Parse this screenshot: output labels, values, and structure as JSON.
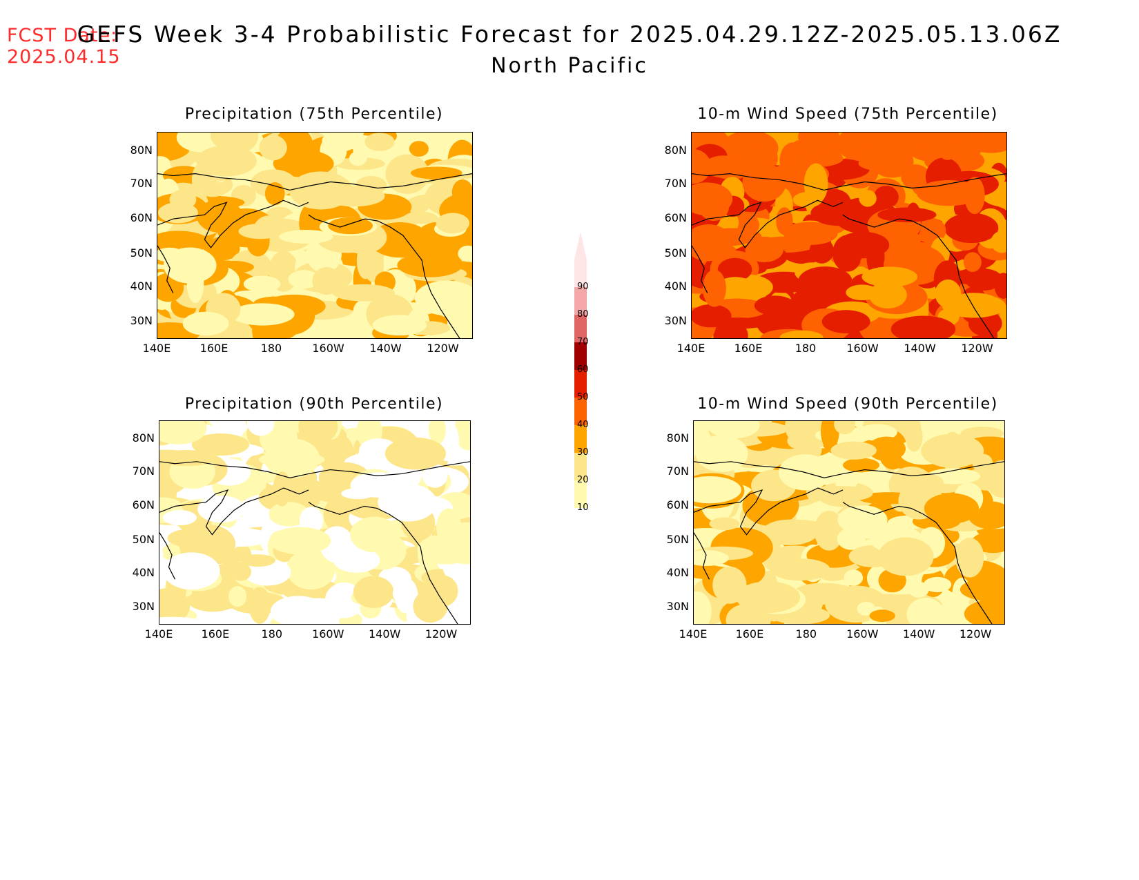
{
  "header": {
    "fcst_label": "FCST Date:",
    "fcst_date": "2025.04.15",
    "title": "GEFS Week 3-4 Probabilistic Forecast for 2025.04.29.12Z-2025.05.13.06Z",
    "region": "North Pacific"
  },
  "panels": [
    {
      "title": "Precipitation (75th Percentile)",
      "level": 2
    },
    {
      "title": "10-m Wind Speed (75th Percentile)",
      "level": 4
    },
    {
      "title": "Precipitation (90th Percentile)",
      "level": 1
    },
    {
      "title": "10-m Wind Speed (90th Percentile)",
      "level": 2
    }
  ],
  "axes": {
    "lat_ticks": [
      "80N",
      "70N",
      "60N",
      "50N",
      "40N",
      "30N"
    ],
    "lon_ticks": [
      "140E",
      "160E",
      "180",
      "160W",
      "140W",
      "120W"
    ]
  },
  "colorbar": {
    "levels": [
      "10",
      "20",
      "30",
      "40",
      "50",
      "60",
      "70",
      "80",
      "90"
    ],
    "colors": [
      "#fffab0",
      "#fde68a",
      "#ffa500",
      "#ff6200",
      "#e61e00",
      "#a00000",
      "#e06666",
      "#f4a7a7",
      "#ffe6e6"
    ]
  }
}
